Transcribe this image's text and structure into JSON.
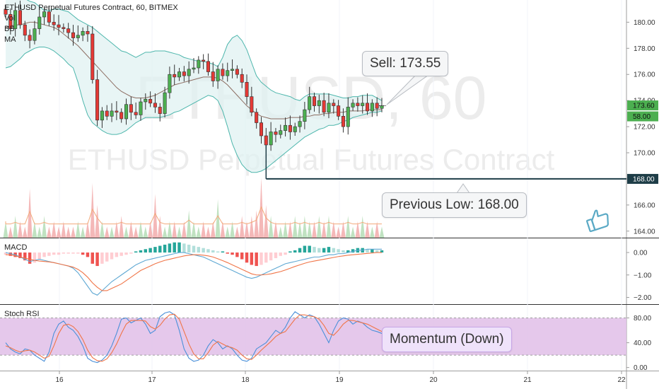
{
  "header": {
    "symbol_line": "ETHUSD Perpetual Futures Contract, 60, BITMEX",
    "indicators": [
      "Vol",
      "BB",
      "MA"
    ]
  },
  "watermark": {
    "line1": "ETHUSD, 60",
    "line2": "ETHUSD Perpetual Futures Contract"
  },
  "annotations": {
    "sell": "Sell: 173.55",
    "previous_low": "Previous Low: 168.00",
    "momentum": "Momentum (Down)"
  },
  "panes": {
    "macd_label": "MACD",
    "stoch_label": "Stoch RSI"
  },
  "colors": {
    "up": "#4caf50",
    "down": "#e53935",
    "bb_line": "#4db6ac",
    "bb_fill": "#e0f2f1",
    "ma_line": "#8d6e63",
    "support_line": "#1e3d47",
    "stoch_band": "#e1bee7"
  },
  "chart_data": [
    {
      "type": "line",
      "name": "price",
      "x_ticks": [
        "16",
        "17",
        "18",
        "19",
        "20",
        "21",
        "22"
      ],
      "y_ticks": [
        "164.00",
        "166.00",
        "168.00",
        "170.00",
        "172.00",
        "174.00",
        "176.00",
        "178.00",
        "180.00"
      ],
      "ylim": [
        163.5,
        181.7
      ],
      "last_price_label": "173.60",
      "volume_label": "58.00",
      "support_label": "168.00",
      "support_level": 168.0,
      "close": [
        180.6,
        179.5,
        180.9,
        179.8,
        179.0,
        178.6,
        179.5,
        180.4,
        180.8,
        180.0,
        179.8,
        179.6,
        179.5,
        179.2,
        178.8,
        179.0,
        179.3,
        179.1,
        175.6,
        172.5,
        173.2,
        172.8,
        173.2,
        173.1,
        172.6,
        173.7,
        173.1,
        172.9,
        173.9,
        174.1,
        173.8,
        173.5,
        173.0,
        174.6,
        176.0,
        175.8,
        176.2,
        175.9,
        176.4,
        176.5,
        177.1,
        177.0,
        176.2,
        175.5,
        176.4,
        175.9,
        176.3,
        176.4,
        176.0,
        175.4,
        174.3,
        173.1,
        172.3,
        171.3,
        170.6,
        171.6,
        171.4,
        171.7,
        172.1,
        171.6,
        172.0,
        172.4,
        173.3,
        174.3,
        173.6,
        174.0,
        173.1,
        173.8,
        173.6,
        172.8,
        172.0,
        173.5,
        173.8,
        173.6,
        173.8,
        173.2,
        173.8,
        173.4,
        173.6
      ],
      "bb_upper": [
        181.9,
        182.1,
        182.2,
        182.1,
        181.8,
        181.6,
        181.5,
        181.2,
        180.9,
        180.9,
        181.0,
        181.0,
        180.9,
        180.8,
        180.5,
        180.2,
        180.0,
        179.8,
        179.6,
        179.3,
        179.0,
        178.7,
        178.4,
        178.1,
        177.8,
        177.7,
        177.5,
        177.3,
        177.5,
        177.7,
        177.7,
        177.8,
        177.8,
        177.8,
        177.7,
        177.6,
        177.5,
        177.3,
        177.2,
        177.1,
        177.0,
        177.0,
        176.9,
        176.8,
        176.6,
        177.3,
        178.3,
        178.8,
        179.0,
        178.6,
        177.9,
        176.9,
        175.9,
        175.4,
        175.1,
        174.8,
        174.6,
        174.5,
        174.4,
        174.3,
        174.1,
        174.0,
        174.3,
        174.5,
        174.5,
        174.5,
        174.5,
        174.5,
        174.4,
        174.3,
        174.2,
        174.2,
        174.3,
        174.3,
        174.4,
        174.4,
        174.4,
        174.2,
        174.0
      ],
      "bb_lower": [
        176.5,
        176.6,
        176.9,
        177.2,
        177.6,
        177.8,
        178.0,
        178.1,
        178.1,
        178.0,
        177.8,
        177.5,
        177.2,
        176.8,
        176.5,
        175.4,
        174.0,
        172.9,
        172.3,
        172.0,
        171.7,
        171.5,
        171.4,
        171.4,
        171.5,
        171.7,
        172.0,
        172.3,
        172.5,
        172.7,
        172.7,
        172.7,
        172.7,
        172.8,
        172.9,
        173.1,
        173.2,
        173.4,
        173.6,
        173.8,
        174.0,
        174.2,
        174.4,
        174.3,
        174.0,
        173.2,
        172.0,
        170.7,
        169.8,
        169.1,
        168.7,
        168.5,
        168.5,
        168.6,
        168.8,
        169.1,
        169.4,
        169.7,
        170.0,
        170.3,
        170.6,
        170.9,
        171.2,
        171.4,
        171.6,
        171.8,
        171.9,
        172.1,
        172.1,
        172.2,
        172.4,
        172.5,
        172.7,
        172.8,
        172.9,
        173.0,
        173.1,
        173.1,
        173.2
      ],
      "ma": [
        179.6,
        179.7,
        179.8,
        179.8,
        179.9,
        180.0,
        180.0,
        179.9,
        179.8,
        179.7,
        179.6,
        179.4,
        179.1,
        178.8,
        178.5,
        178.2,
        177.8,
        177.4,
        177.0,
        176.6,
        176.2,
        175.8,
        175.4,
        175.0,
        174.7,
        174.5,
        174.3,
        174.2,
        174.2,
        174.2,
        174.3,
        174.4,
        174.6,
        174.8,
        175.0,
        175.2,
        175.3,
        175.4,
        175.5,
        175.6,
        175.7,
        175.8,
        175.8,
        175.8,
        175.7,
        175.5,
        175.2,
        174.8,
        174.4,
        174.0,
        173.6,
        173.3,
        173.0,
        172.8,
        172.7,
        172.6,
        172.6,
        172.6,
        172.6,
        172.7,
        172.7,
        172.7,
        172.8,
        172.8,
        172.9,
        172.9,
        173.0,
        173.0,
        173.1,
        173.1,
        173.1,
        173.2,
        173.2,
        173.2,
        173.2,
        173.3,
        173.3,
        173.3,
        173.3
      ]
    },
    {
      "type": "area",
      "name": "Vol",
      "values": [
        3,
        2,
        4,
        3,
        2,
        9,
        3,
        2,
        4,
        2,
        3,
        2,
        3,
        2,
        2,
        3,
        2,
        3,
        10,
        6,
        3,
        2,
        2,
        3,
        4,
        2,
        3,
        2,
        3,
        2,
        3,
        8,
        4,
        2,
        3,
        3,
        2,
        3,
        5,
        3,
        2,
        3,
        2,
        3,
        7,
        3,
        2,
        3,
        2,
        4,
        3,
        4,
        5,
        11,
        6,
        4,
        3,
        2,
        3,
        3,
        4,
        3,
        4,
        3,
        3,
        4,
        3,
        4,
        3,
        2,
        3,
        4,
        2,
        3,
        4,
        3,
        2,
        3,
        2
      ]
    },
    {
      "type": "bar",
      "name": "MACD",
      "y_ticks": [
        "0.00",
        "−1.00",
        "−2.00"
      ],
      "ylim": [
        -2.3,
        0.6
      ],
      "histogram": [
        -0.1,
        -0.15,
        -0.2,
        -0.25,
        -0.35,
        -0.5,
        -0.45,
        -0.3,
        -0.2,
        -0.15,
        -0.1,
        -0.1,
        -0.05,
        -0.05,
        -0.05,
        -0.05,
        -0.1,
        -0.2,
        -0.5,
        -0.6,
        -0.5,
        -0.4,
        -0.3,
        -0.2,
        -0.15,
        -0.1,
        -0.05,
        0.05,
        0.1,
        0.15,
        0.2,
        0.25,
        0.3,
        0.35,
        0.4,
        0.45,
        0.45,
        0.4,
        0.35,
        0.3,
        0.25,
        0.2,
        0.15,
        0.1,
        0.05,
        0.05,
        -0.05,
        -0.1,
        -0.2,
        -0.3,
        -0.45,
        -0.55,
        -0.6,
        -0.55,
        -0.45,
        -0.35,
        -0.25,
        -0.15,
        -0.1,
        0.05,
        0.1,
        0.2,
        0.3,
        0.3,
        0.25,
        0.2,
        0.2,
        0.25,
        0.2,
        0.15,
        0.1,
        0.1,
        0.15,
        0.2,
        0.2,
        0.15,
        0.15,
        0.1,
        0.1
      ],
      "macd_line": [
        0.0,
        -0.05,
        -0.1,
        -0.2,
        -0.3,
        -0.4,
        -0.35,
        -0.3,
        -0.35,
        -0.4,
        -0.45,
        -0.5,
        -0.55,
        -0.6,
        -0.7,
        -0.9,
        -1.2,
        -1.5,
        -1.8,
        -1.9,
        -1.7,
        -1.5,
        -1.3,
        -1.15,
        -1.0,
        -0.85,
        -0.7,
        -0.55,
        -0.45,
        -0.35,
        -0.3,
        -0.25,
        -0.2,
        -0.15,
        -0.1,
        -0.05,
        0.0,
        0.0,
        -0.05,
        -0.1,
        -0.15,
        -0.2,
        -0.3,
        -0.4,
        -0.5,
        -0.6,
        -0.7,
        -0.8,
        -0.9,
        -1.0,
        -1.1,
        -1.15,
        -1.1,
        -1.0,
        -0.9,
        -0.8,
        -0.7,
        -0.6,
        -0.5,
        -0.45,
        -0.4,
        -0.35,
        -0.3,
        -0.25,
        -0.2,
        -0.2,
        -0.15,
        -0.1,
        -0.1,
        -0.05,
        -0.05,
        0.0,
        0.05,
        0.1,
        0.1,
        0.15,
        0.15,
        0.15,
        0.15
      ],
      "signal_line": [
        -0.1,
        -0.1,
        -0.15,
        -0.2,
        -0.25,
        -0.3,
        -0.35,
        -0.38,
        -0.4,
        -0.42,
        -0.45,
        -0.5,
        -0.55,
        -0.6,
        -0.65,
        -0.75,
        -0.9,
        -1.1,
        -1.35,
        -1.55,
        -1.7,
        -1.7,
        -1.6,
        -1.5,
        -1.4,
        -1.25,
        -1.1,
        -0.95,
        -0.8,
        -0.7,
        -0.6,
        -0.5,
        -0.42,
        -0.35,
        -0.3,
        -0.25,
        -0.2,
        -0.15,
        -0.12,
        -0.1,
        -0.1,
        -0.12,
        -0.15,
        -0.2,
        -0.28,
        -0.36,
        -0.45,
        -0.55,
        -0.65,
        -0.75,
        -0.85,
        -0.95,
        -1.0,
        -1.0,
        -0.98,
        -0.95,
        -0.9,
        -0.85,
        -0.78,
        -0.7,
        -0.62,
        -0.55,
        -0.48,
        -0.42,
        -0.38,
        -0.34,
        -0.3,
        -0.26,
        -0.22,
        -0.18,
        -0.15,
        -0.12,
        -0.1,
        -0.08,
        -0.06,
        -0.04,
        -0.02,
        0.0,
        0.0
      ]
    },
    {
      "type": "line",
      "name": "Stoch RSI",
      "y_ticks": [
        "80.00",
        "40.00",
        "0.00"
      ],
      "ylim": [
        -5,
        100
      ],
      "band": [
        20,
        80
      ],
      "k": [
        40,
        30,
        25,
        22,
        30,
        28,
        20,
        15,
        10,
        25,
        55,
        70,
        75,
        65,
        60,
        50,
        35,
        15,
        10,
        8,
        12,
        20,
        35,
        55,
        78,
        80,
        72,
        76,
        80,
        70,
        55,
        60,
        82,
        88,
        90,
        85,
        60,
        30,
        15,
        10,
        12,
        20,
        35,
        45,
        40,
        30,
        35,
        30,
        20,
        12,
        10,
        15,
        30,
        35,
        40,
        50,
        60,
        55,
        65,
        80,
        90,
        85,
        80,
        85,
        82,
        70,
        55,
        40,
        60,
        75,
        80,
        78,
        70,
        75,
        72,
        65,
        60,
        58,
        55
      ],
      "d": [
        35,
        32,
        28,
        25,
        27,
        28,
        25,
        20,
        15,
        18,
        35,
        55,
        68,
        70,
        66,
        58,
        45,
        28,
        16,
        11,
        10,
        14,
        24,
        38,
        55,
        70,
        76,
        76,
        76,
        75,
        66,
        62,
        68,
        78,
        85,
        86,
        78,
        58,
        38,
        22,
        14,
        14,
        24,
        36,
        42,
        38,
        34,
        32,
        28,
        20,
        14,
        13,
        20,
        28,
        35,
        42,
        50,
        55,
        58,
        68,
        78,
        85,
        85,
        83,
        82,
        78,
        68,
        55,
        52,
        60,
        70,
        76,
        76,
        74,
        72,
        70,
        66,
        62,
        58
      ]
    }
  ]
}
